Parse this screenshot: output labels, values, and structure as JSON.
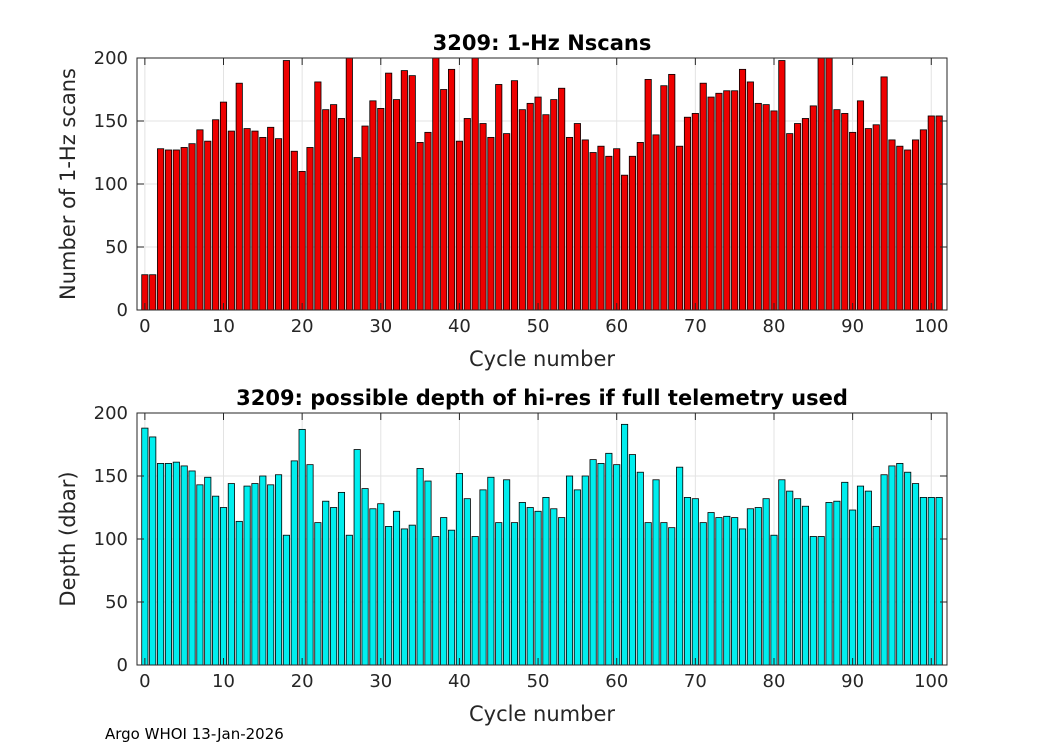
{
  "footer": "Argo WHOI 13-Jan-2026",
  "chart_data": [
    {
      "type": "bar",
      "title": "3209: 1-Hz Nscans",
      "xlabel": "Cycle number",
      "ylabel": "Number of 1-Hz scans",
      "xlim": [
        -1,
        102
      ],
      "ylim": [
        0,
        200
      ],
      "xticks": [
        0,
        10,
        20,
        30,
        40,
        50,
        60,
        70,
        80,
        90,
        100
      ],
      "yticks": [
        0,
        50,
        100,
        150,
        200
      ],
      "grid": true,
      "bar_color": "#ee0000",
      "x": [
        0,
        1,
        2,
        3,
        4,
        5,
        6,
        7,
        8,
        9,
        10,
        11,
        12,
        13,
        14,
        15,
        16,
        17,
        18,
        19,
        20,
        21,
        22,
        23,
        24,
        25,
        26,
        27,
        28,
        29,
        30,
        31,
        32,
        33,
        34,
        35,
        36,
        37,
        38,
        39,
        40,
        41,
        42,
        43,
        44,
        45,
        46,
        47,
        48,
        49,
        50,
        51,
        52,
        53,
        54,
        55,
        56,
        57,
        58,
        59,
        60,
        61,
        62,
        63,
        64,
        65,
        66,
        67,
        68,
        69,
        70,
        71,
        72,
        73,
        74,
        75,
        76,
        77,
        78,
        79,
        80,
        81,
        82,
        83,
        84,
        85,
        86,
        87,
        88,
        89,
        90,
        91,
        92,
        93,
        94,
        95,
        96,
        97,
        98,
        99,
        100,
        101
      ],
      "values": [
        28,
        28,
        128,
        127,
        127,
        129,
        132,
        143,
        134,
        151,
        165,
        142,
        180,
        144,
        142,
        137,
        145,
        136,
        198,
        126,
        110,
        129,
        181,
        159,
        163,
        152,
        200,
        121,
        146,
        166,
        160,
        188,
        167,
        190,
        186,
        133,
        141,
        200,
        175,
        191,
        134,
        152,
        200,
        148,
        137,
        179,
        140,
        182,
        159,
        164,
        169,
        155,
        167,
        176,
        137,
        148,
        135,
        125,
        130,
        122,
        128,
        107,
        122,
        133,
        183,
        139,
        178,
        187,
        130,
        153,
        156,
        180,
        169,
        172,
        174,
        174,
        191,
        181,
        164,
        163,
        158,
        198,
        140,
        148,
        152,
        162,
        200,
        200,
        159,
        156,
        141,
        166,
        144,
        147,
        185,
        135,
        130,
        127,
        135,
        143,
        154,
        154
      ]
    },
    {
      "type": "bar",
      "title": "3209: possible depth of hi-res if full telemetry used",
      "xlabel": "Cycle number",
      "ylabel": "Depth (dbar)",
      "xlim": [
        -1,
        102
      ],
      "ylim": [
        0,
        200
      ],
      "xticks": [
        0,
        10,
        20,
        30,
        40,
        50,
        60,
        70,
        80,
        90,
        100
      ],
      "yticks": [
        0,
        50,
        100,
        150,
        200
      ],
      "grid": true,
      "bar_color": "#00eeee",
      "x": [
        0,
        1,
        2,
        3,
        4,
        5,
        6,
        7,
        8,
        9,
        10,
        11,
        12,
        13,
        14,
        15,
        16,
        17,
        18,
        19,
        20,
        21,
        22,
        23,
        24,
        25,
        26,
        27,
        28,
        29,
        30,
        31,
        32,
        33,
        34,
        35,
        36,
        37,
        38,
        39,
        40,
        41,
        42,
        43,
        44,
        45,
        46,
        47,
        48,
        49,
        50,
        51,
        52,
        53,
        54,
        55,
        56,
        57,
        58,
        59,
        60,
        61,
        62,
        63,
        64,
        65,
        66,
        67,
        68,
        69,
        70,
        71,
        72,
        73,
        74,
        75,
        76,
        77,
        78,
        79,
        80,
        81,
        82,
        83,
        84,
        85,
        86,
        87,
        88,
        89,
        90,
        91,
        92,
        93,
        94,
        95,
        96,
        97,
        98,
        99,
        100,
        101
      ],
      "values": [
        188,
        181,
        160,
        160,
        161,
        158,
        154,
        143,
        149,
        134,
        125,
        144,
        114,
        142,
        144,
        150,
        143,
        151,
        103,
        162,
        187,
        159,
        113,
        130,
        125,
        137,
        103,
        171,
        140,
        124,
        128,
        110,
        122,
        108,
        111,
        156,
        146,
        102,
        117,
        107,
        152,
        132,
        102,
        139,
        149,
        113,
        147,
        113,
        129,
        125,
        122,
        133,
        124,
        117,
        150,
        139,
        150,
        163,
        160,
        168,
        159,
        191,
        167,
        153,
        113,
        147,
        113,
        109,
        157,
        133,
        132,
        113,
        121,
        117,
        118,
        117,
        108,
        124,
        125,
        132,
        103,
        147,
        138,
        132,
        126,
        102,
        102,
        129,
        130,
        145,
        123,
        142,
        138,
        110,
        151,
        158,
        160,
        153,
        144,
        133,
        133,
        133
      ]
    }
  ]
}
